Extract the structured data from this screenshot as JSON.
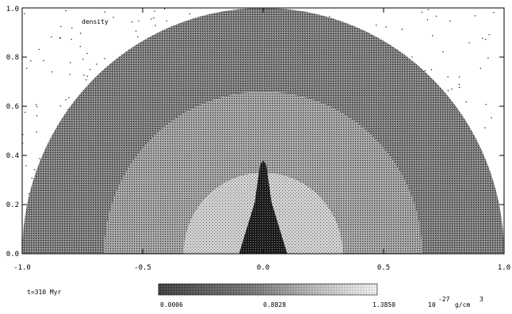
{
  "chart_data": {
    "type": "heatmap",
    "title": "density",
    "x_ticks": [
      "-1.0",
      "-0.5",
      "0.0",
      "0.5",
      "1.0"
    ],
    "y_ticks": [
      "0.0",
      "0.2",
      "0.4",
      "0.6",
      "0.8",
      "1.0"
    ],
    "xlim": [
      -1.0,
      1.0
    ],
    "ylim": [
      0.0,
      1.0
    ],
    "shell_outer_radius": 1.0,
    "shell_inner_radius": 0.66,
    "lobe_boundary_radius": 0.33,
    "jet_height": 0.38,
    "jet_base_halfwidth": 0.1,
    "time_label": "t=310 Myr",
    "colorbar": {
      "min_label": "0.0006",
      "mid_label": "0.8828",
      "max_label": "1.3850",
      "unit_prefix": "10",
      "unit_exponent": "-27",
      "unit_suffix": "g/cm",
      "unit_suffix_exponent": "3"
    }
  },
  "colors": {
    "background": "#ffffff",
    "shell": "#6e6e6e",
    "inner_region": "#9a9a9a",
    "cocoon": "#c9c9c9",
    "jet": "#1a1a1a",
    "frame": "#000000"
  }
}
